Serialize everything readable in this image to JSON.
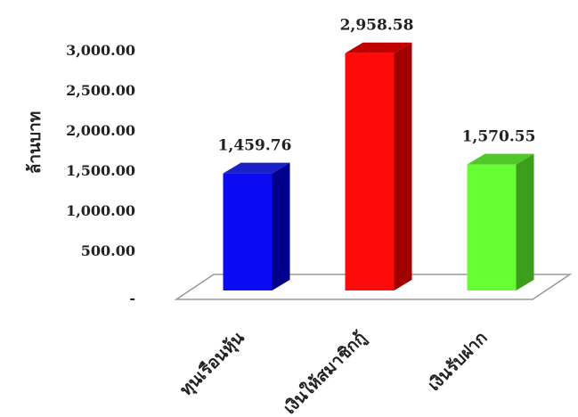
{
  "chart_data": {
    "type": "bar",
    "categories": [
      "ทุนเรือนหุ้น",
      "เงินให้สมาชิกกู้",
      "เงินรับฝาก"
    ],
    "values": [
      1459.76,
      2958.58,
      1570.55
    ],
    "data_labels": [
      "1,459.76",
      "2,958.58",
      "1,570.55"
    ],
    "title": "",
    "xlabel": "",
    "ylabel": "ล้านบาท",
    "ylim": [
      0,
      3000
    ],
    "yticks": [
      0,
      500,
      1000,
      1500,
      2000,
      2500,
      3000
    ],
    "ytick_labels": [
      "-",
      "500.00",
      "1,000.00",
      "1,500.00",
      "2,000.00",
      "2,500.00",
      "3,000.00"
    ],
    "grid": false,
    "three_d": true,
    "colors": [
      {
        "front": "#0a0af5",
        "side": "#00008a",
        "top": "#1a20c8"
      },
      {
        "front": "#ff0a0a",
        "side": "#a00000",
        "top": "#c00000"
      },
      {
        "front": "#66ff33",
        "side": "#3c9e1c",
        "top": "#4fc92a"
      }
    ]
  }
}
